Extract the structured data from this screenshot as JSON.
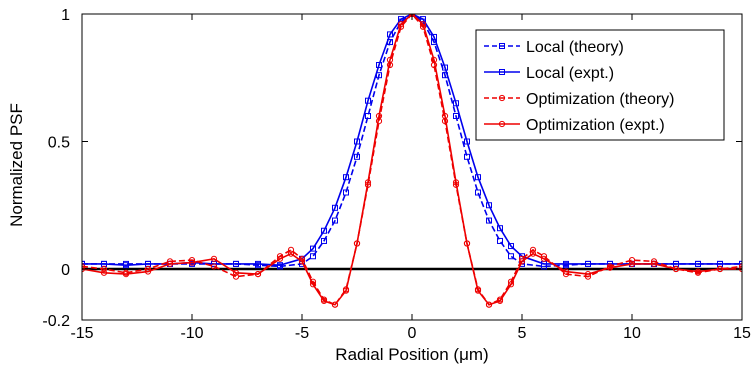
{
  "chart_data": {
    "type": "line",
    "title": "",
    "xlabel": "Radial Position (μm)",
    "ylabel": "Normalized PSF",
    "xlim": [
      -15,
      15
    ],
    "ylim": [
      -0.2,
      1
    ],
    "xticks": [
      "-15",
      "-10",
      "-5",
      "0",
      "5",
      "10",
      "15"
    ],
    "yticks": [
      "-0.2",
      "0",
      "0.5",
      "1"
    ],
    "grid": false,
    "legend_position": "top-right",
    "colors": {
      "local": "#0000ee",
      "optimization": "#ee0000",
      "baseline": "#000000"
    },
    "series": [
      {
        "name": "Local (theory)",
        "color": "#0000ee",
        "dash": "dashed",
        "marker": "square",
        "x": [
          -15,
          -14,
          -13,
          -12,
          -11,
          -10,
          -9,
          -8,
          -7,
          -6,
          -5,
          -4.5,
          -4,
          -3.5,
          -3,
          -2.5,
          -2,
          -1.5,
          -1,
          -0.5,
          0,
          0.5,
          1,
          1.5,
          2,
          2.5,
          3,
          3.5,
          4,
          4.5,
          5,
          6,
          7,
          8,
          9,
          10,
          11,
          12,
          13,
          14,
          15
        ],
        "y": [
          0.02,
          0.02,
          0.02,
          0.02,
          0.02,
          0.02,
          0.02,
          0.02,
          0.015,
          0.01,
          0.02,
          0.05,
          0.11,
          0.19,
          0.3,
          0.44,
          0.6,
          0.76,
          0.89,
          0.97,
          1,
          0.97,
          0.89,
          0.76,
          0.6,
          0.44,
          0.3,
          0.19,
          0.11,
          0.05,
          0.02,
          0.01,
          0.015,
          0.02,
          0.02,
          0.02,
          0.02,
          0.02,
          0.02,
          0.02,
          0.02
        ]
      },
      {
        "name": "Local (expt.)",
        "color": "#0000ee",
        "dash": "solid",
        "marker": "square",
        "x": [
          -15,
          -14,
          -13,
          -12,
          -11,
          -10,
          -9,
          -8,
          -7,
          -6,
          -5,
          -4.5,
          -4,
          -3.5,
          -3,
          -2.5,
          -2,
          -1.5,
          -1,
          -0.5,
          0,
          0.5,
          1,
          1.5,
          2,
          2.5,
          3,
          3.5,
          4,
          4.5,
          5,
          6,
          7,
          8,
          9,
          10,
          11,
          12,
          13,
          14,
          15
        ],
        "y": [
          0.02,
          0.02,
          0.015,
          0.02,
          0.02,
          0.025,
          0.02,
          0.02,
          0.02,
          0.015,
          0.04,
          0.08,
          0.15,
          0.24,
          0.36,
          0.5,
          0.66,
          0.8,
          0.92,
          0.98,
          1,
          0.98,
          0.91,
          0.79,
          0.65,
          0.5,
          0.36,
          0.25,
          0.16,
          0.09,
          0.05,
          0.02,
          0.02,
          0.02,
          0.02,
          0.02,
          0.02,
          0.02,
          0.02,
          0.02,
          0.02
        ]
      },
      {
        "name": "Optimization (theory)",
        "color": "#ee0000",
        "dash": "dashed",
        "marker": "circle",
        "x": [
          -15,
          -14,
          -13,
          -12,
          -11,
          -10,
          -9,
          -8,
          -7,
          -6,
          -5.5,
          -5,
          -4.5,
          -4,
          -3.5,
          -3,
          -2.5,
          -2,
          -1.5,
          -1,
          -0.5,
          0,
          0.5,
          1,
          1.5,
          2,
          2.5,
          3,
          3.5,
          4,
          4.5,
          5,
          5.5,
          6,
          7,
          8,
          9,
          10,
          11,
          12,
          13,
          14,
          15
        ],
        "y": [
          0.01,
          0.0,
          -0.015,
          0.0,
          0.03,
          0.035,
          0.01,
          -0.03,
          -0.02,
          0.05,
          0.075,
          0.04,
          -0.05,
          -0.12,
          -0.14,
          -0.08,
          0.1,
          0.33,
          0.58,
          0.8,
          0.95,
          1,
          0.95,
          0.8,
          0.58,
          0.33,
          0.1,
          -0.08,
          -0.14,
          -0.12,
          -0.05,
          0.04,
          0.075,
          0.05,
          -0.02,
          -0.03,
          0.01,
          0.035,
          0.03,
          0.0,
          -0.015,
          0.0,
          0.01
        ]
      },
      {
        "name": "Optimization (expt.)",
        "color": "#ee0000",
        "dash": "solid",
        "marker": "circle",
        "x": [
          -15,
          -14,
          -13,
          -12,
          -11,
          -10,
          -9,
          -8,
          -7,
          -6,
          -5.5,
          -5,
          -4.5,
          -4,
          -3.5,
          -3,
          -2.5,
          -2,
          -1.5,
          -1,
          -0.5,
          0,
          0.5,
          1,
          1.5,
          2,
          2.5,
          3,
          3.5,
          4,
          4.5,
          5,
          5.5,
          6,
          7,
          8,
          9,
          10,
          11,
          12,
          13,
          14,
          15
        ],
        "y": [
          0.0,
          -0.015,
          -0.02,
          -0.01,
          0.02,
          0.025,
          0.04,
          -0.015,
          -0.02,
          0.04,
          0.06,
          0.03,
          -0.06,
          -0.125,
          -0.14,
          -0.085,
          0.1,
          0.34,
          0.6,
          0.82,
          0.96,
          1,
          0.96,
          0.82,
          0.6,
          0.34,
          0.1,
          -0.085,
          -0.14,
          -0.125,
          -0.06,
          0.03,
          0.06,
          0.04,
          -0.01,
          -0.02,
          0.005,
          0.02,
          0.02,
          0.0,
          -0.01,
          0.0,
          0.0
        ]
      }
    ]
  }
}
